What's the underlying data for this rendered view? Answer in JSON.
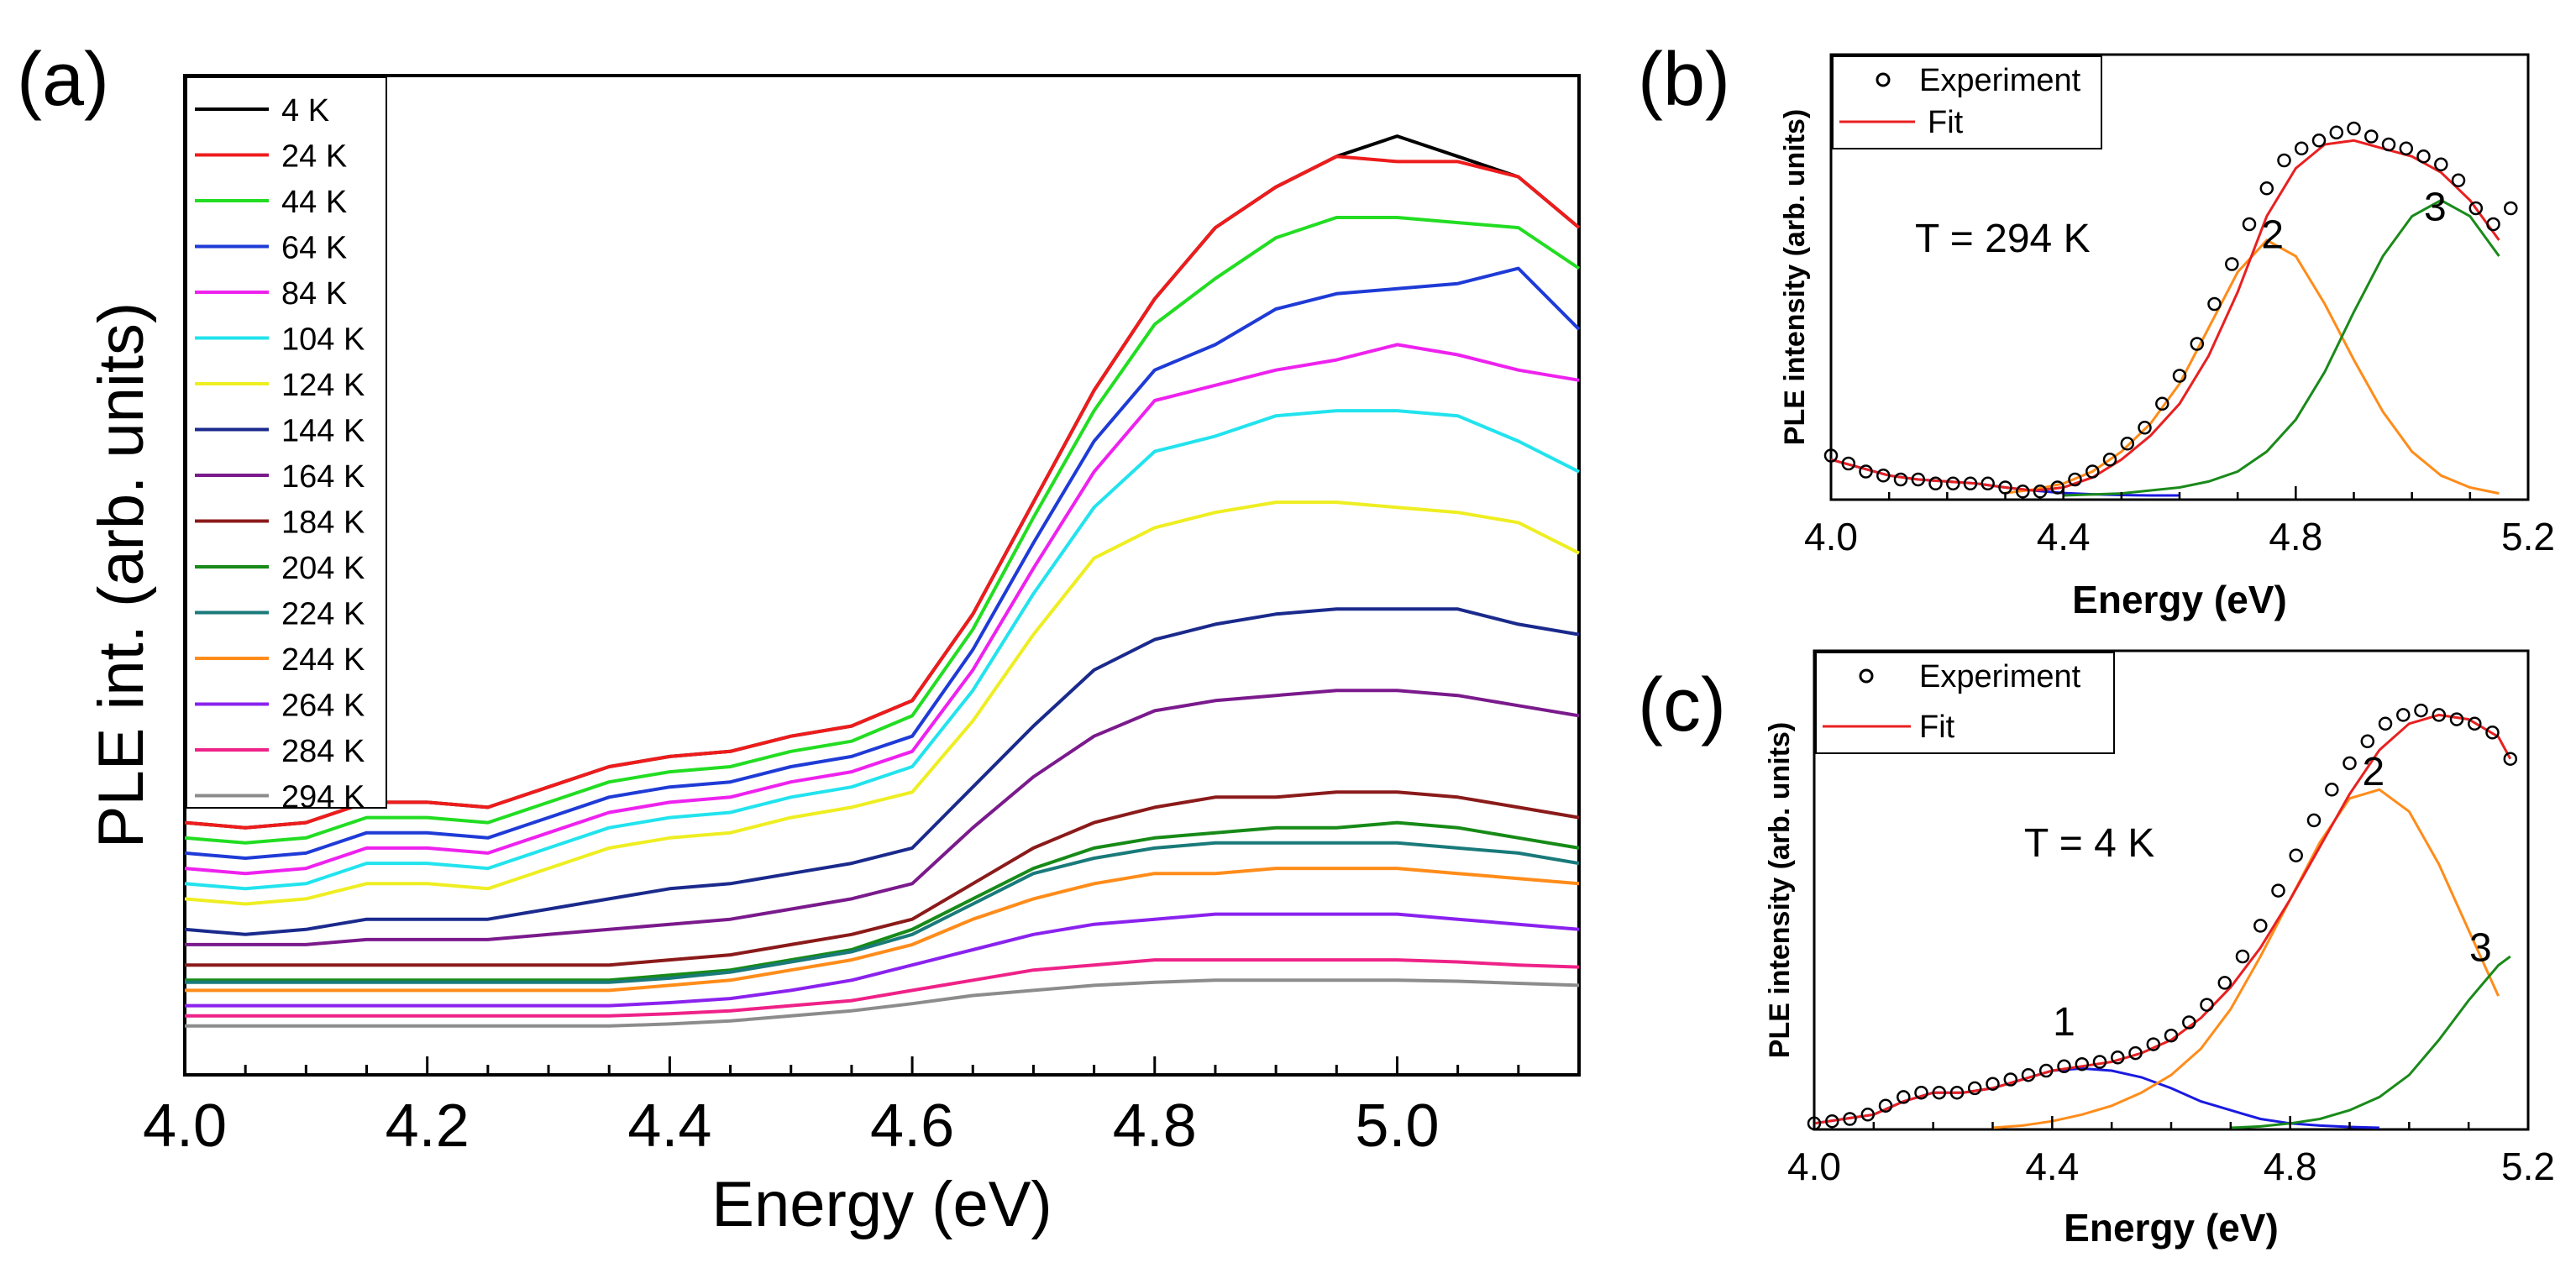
{
  "chart_data": [
    {
      "panel": "(a)",
      "type": "line",
      "xlabel": "Energy (eV)",
      "ylabel": "PLE int. (arb. units)",
      "xlim": [
        4.0,
        5.15
      ],
      "ylim": [
        0,
        100
      ],
      "xticks": [
        "4.0",
        "4.2",
        "4.4",
        "4.6",
        "4.8",
        "5.0"
      ],
      "legend_position": "top-left",
      "x": [
        4.0,
        4.05,
        4.1,
        4.15,
        4.2,
        4.25,
        4.3,
        4.35,
        4.4,
        4.45,
        4.5,
        4.55,
        4.6,
        4.65,
        4.7,
        4.75,
        4.8,
        4.85,
        4.9,
        4.95,
        5.0,
        5.05,
        5.1,
        5.15
      ],
      "series": [
        {
          "name": "4 K",
          "color": "#000000",
          "values": [
            21.5,
            21,
            21.5,
            23.5,
            23.5,
            23,
            25,
            27,
            28,
            28.5,
            30,
            31,
            33.5,
            42,
            53,
            64,
            73,
            80,
            84,
            87,
            89,
            87,
            85,
            80
          ]
        },
        {
          "name": "24 K",
          "color": "#ee1c1c",
          "values": [
            21.5,
            21,
            21.5,
            23.5,
            23.5,
            23,
            25,
            27,
            28,
            28.5,
            30,
            31,
            33.5,
            42,
            53,
            64,
            73,
            80,
            84,
            87,
            86.5,
            86.5,
            85,
            80
          ]
        },
        {
          "name": "44 K",
          "color": "#22dd22",
          "values": [
            20,
            19.5,
            20,
            22,
            22,
            21.5,
            23.5,
            25.5,
            26.5,
            27,
            28.5,
            29.5,
            32,
            40.5,
            51.5,
            62,
            70.5,
            75,
            79,
            81,
            81,
            80.5,
            80,
            76
          ]
        },
        {
          "name": "64 K",
          "color": "#1f3bd6",
          "values": [
            18.5,
            18,
            18.5,
            20.5,
            20.5,
            20,
            22,
            24,
            25,
            25.5,
            27,
            28,
            30,
            38.5,
            49,
            59,
            66,
            68.5,
            72,
            73.5,
            74,
            74.5,
            76,
            70
          ]
        },
        {
          "name": "84 K",
          "color": "#ee22ee",
          "values": [
            17,
            16.5,
            17,
            19,
            19,
            18.5,
            20.5,
            22.5,
            23.5,
            24,
            25.5,
            26.5,
            28.5,
            36.5,
            46.5,
            56,
            63,
            64.5,
            66,
            67,
            68.5,
            67.5,
            66,
            65
          ]
        },
        {
          "name": "104 K",
          "color": "#22e3ee",
          "values": [
            15.5,
            15,
            15.5,
            17.5,
            17.5,
            17,
            19,
            21,
            22,
            22.5,
            24,
            25,
            27,
            34.5,
            44,
            52.5,
            58,
            59.5,
            61.5,
            62,
            62,
            61.5,
            59,
            56
          ]
        },
        {
          "name": "124 K",
          "color": "#eeee22",
          "values": [
            14,
            13.5,
            14,
            15.5,
            15.5,
            15,
            17,
            19,
            20,
            20.5,
            22,
            23,
            24.5,
            31.5,
            40,
            47.5,
            50.5,
            52,
            53,
            53,
            52.5,
            52,
            51,
            48
          ]
        },
        {
          "name": "144 K",
          "color": "#1a2a8c",
          "values": [
            11,
            10.5,
            11,
            12,
            12,
            12,
            13,
            14,
            15,
            15.5,
            16.5,
            17.5,
            19,
            25,
            31,
            36.5,
            39.5,
            41,
            42,
            42.5,
            42.5,
            42.5,
            41,
            40
          ]
        },
        {
          "name": "164 K",
          "color": "#7a1a8c",
          "values": [
            9.5,
            9.5,
            9.5,
            10,
            10,
            10,
            10.5,
            11,
            11.5,
            12,
            13,
            14,
            15.5,
            21,
            26,
            30,
            32.5,
            33.5,
            34,
            34.5,
            34.5,
            34,
            33,
            32
          ]
        },
        {
          "name": "184 K",
          "color": "#8b1a1a",
          "values": [
            7.5,
            7.5,
            7.5,
            7.5,
            7.5,
            7.5,
            7.5,
            7.5,
            8,
            8.5,
            9.5,
            10.5,
            12,
            15.5,
            19,
            21.5,
            23,
            24,
            24,
            24.5,
            24.5,
            24,
            23,
            22
          ]
        },
        {
          "name": "204 K",
          "color": "#178a17",
          "values": [
            6,
            6,
            6,
            6,
            6,
            6,
            6,
            6,
            6.5,
            7,
            8,
            9,
            11,
            14,
            17,
            19,
            20,
            20.5,
            21,
            21,
            21.5,
            21,
            20,
            19
          ]
        },
        {
          "name": "224 K",
          "color": "#1a7a7a",
          "values": [
            5.8,
            5.8,
            5.8,
            5.8,
            5.8,
            5.8,
            5.8,
            5.8,
            6.2,
            6.8,
            7.8,
            8.8,
            10.5,
            13.5,
            16.5,
            18,
            19,
            19.5,
            19.5,
            19.5,
            19.5,
            19,
            18.5,
            17.5
          ]
        },
        {
          "name": "244 K",
          "color": "#ff8c1a",
          "values": [
            5,
            5,
            5,
            5,
            5,
            5,
            5,
            5,
            5.5,
            6,
            7,
            8,
            9.5,
            12,
            14,
            15.5,
            16.5,
            16.5,
            17,
            17,
            17,
            16.5,
            16,
            15.5
          ]
        },
        {
          "name": "264 K",
          "color": "#8a22ee",
          "values": [
            3.5,
            3.5,
            3.5,
            3.5,
            3.5,
            3.5,
            3.5,
            3.5,
            3.8,
            4.2,
            5,
            6,
            7.5,
            9,
            10.5,
            11.5,
            12,
            12.5,
            12.5,
            12.5,
            12.5,
            12,
            11.5,
            11
          ]
        },
        {
          "name": "284 K",
          "color": "#ee2288",
          "values": [
            2.5,
            2.5,
            2.5,
            2.5,
            2.5,
            2.5,
            2.5,
            2.5,
            2.7,
            3,
            3.5,
            4,
            5,
            6,
            7,
            7.5,
            8,
            8,
            8,
            8,
            8,
            7.8,
            7.5,
            7.3
          ]
        },
        {
          "name": "294 K",
          "color": "#8c8c8c",
          "values": [
            1.5,
            1.5,
            1.5,
            1.5,
            1.5,
            1.5,
            1.5,
            1.5,
            1.7,
            2,
            2.5,
            3,
            3.7,
            4.5,
            5,
            5.5,
            5.8,
            6,
            6,
            6,
            6,
            5.9,
            5.7,
            5.5
          ]
        }
      ]
    },
    {
      "panel": "(b)",
      "type": "line",
      "xlabel": "Energy (eV)",
      "ylabel": "PLE intensity (arb. units)",
      "xlim": [
        4.0,
        5.2
      ],
      "ylim": [
        0,
        100
      ],
      "xticks": [
        "4.0",
        "4.4",
        "4.8",
        "5.2"
      ],
      "annotation": "T = 294 K",
      "legend": [
        "Experiment",
        "Fit"
      ],
      "peak_labels": [
        {
          "text": "2",
          "x": 4.76,
          "y": 62
        },
        {
          "text": "3",
          "x": 5.04,
          "y": 69
        }
      ],
      "experiment_x": [
        4.0,
        4.03,
        4.06,
        4.09,
        4.12,
        4.15,
        4.18,
        4.21,
        4.24,
        4.27,
        4.3,
        4.33,
        4.36,
        4.39,
        4.42,
        4.45,
        4.48,
        4.51,
        4.54,
        4.57,
        4.6,
        4.63,
        4.66,
        4.69,
        4.72,
        4.75,
        4.78,
        4.81,
        4.84,
        4.87,
        4.9,
        4.93,
        4.96,
        4.99,
        5.02,
        5.05,
        5.08,
        5.11,
        5.14,
        5.17
      ],
      "experiment_y": [
        10,
        8,
        6,
        5,
        4,
        4,
        3,
        3,
        3,
        3,
        2,
        1,
        1,
        2,
        4,
        6,
        9,
        13,
        17,
        23,
        30,
        38,
        48,
        58,
        68,
        77,
        84,
        87,
        89,
        91,
        92,
        90,
        88,
        87,
        85,
        83,
        79,
        72,
        68,
        72
      ],
      "fit": {
        "color": "#e82020",
        "x": [
          4.0,
          4.05,
          4.1,
          4.15,
          4.2,
          4.25,
          4.3,
          4.35,
          4.4,
          4.45,
          4.5,
          4.55,
          4.6,
          4.65,
          4.7,
          4.75,
          4.8,
          4.85,
          4.9,
          4.95,
          5.0,
          5.05,
          5.1,
          5.15
        ],
        "y": [
          9,
          7,
          5,
          4,
          3.5,
          3,
          2,
          1.2,
          2,
          4.5,
          9,
          15,
          23,
          35,
          51,
          70,
          82,
          88,
          89,
          87,
          85,
          81,
          74,
          64
        ]
      },
      "components": [
        {
          "name": "1",
          "color": "#1a1ae0",
          "x": [
            4.0,
            4.05,
            4.1,
            4.15,
            4.2,
            4.25,
            4.3,
            4.35,
            4.4,
            4.45,
            4.5,
            4.55,
            4.6
          ],
          "y": [
            9,
            7,
            5,
            4,
            3.5,
            3,
            2,
            1.2,
            0.6,
            0.3,
            0.1,
            0,
            0
          ]
        },
        {
          "name": "2",
          "color": "#ff8c1a",
          "x": [
            4.3,
            4.35,
            4.4,
            4.45,
            4.5,
            4.55,
            4.6,
            4.65,
            4.7,
            4.75,
            4.8,
            4.85,
            4.9,
            4.95,
            5.0,
            5.05,
            5.1,
            5.15
          ],
          "y": [
            0.6,
            1.5,
            3,
            6,
            11,
            18,
            28,
            42,
            56,
            64,
            60,
            48,
            34,
            21,
            11,
            5,
            2,
            0.5
          ]
        },
        {
          "name": "3",
          "color": "#1a8a1a",
          "x": [
            4.4,
            4.5,
            4.6,
            4.65,
            4.7,
            4.75,
            4.8,
            4.85,
            4.9,
            4.95,
            5.0,
            5.05,
            5.1,
            5.15
          ],
          "y": [
            0,
            0.5,
            2,
            3.5,
            6,
            11,
            19,
            31,
            46,
            60,
            70,
            74,
            70,
            60
          ]
        }
      ]
    },
    {
      "panel": "(c)",
      "type": "line",
      "xlabel": "Energy (eV)",
      "ylabel": "PLE intensity (arb. units)",
      "xlim": [
        4.0,
        5.2
      ],
      "ylim": [
        0,
        100
      ],
      "xticks": [
        "4.0",
        "4.4",
        "4.8",
        "5.2"
      ],
      "annotation": "T = 4 K",
      "legend": [
        "Experiment",
        "Fit"
      ],
      "peak_labels": [
        {
          "text": "1",
          "x": 4.42,
          "y": 21
        },
        {
          "text": "2",
          "x": 4.94,
          "y": 78
        },
        {
          "text": "3",
          "x": 5.12,
          "y": 38
        }
      ],
      "experiment_x": [
        4.0,
        4.03,
        4.06,
        4.09,
        4.12,
        4.15,
        4.18,
        4.21,
        4.24,
        4.27,
        4.3,
        4.33,
        4.36,
        4.39,
        4.42,
        4.45,
        4.48,
        4.51,
        4.54,
        4.57,
        4.6,
        4.63,
        4.66,
        4.69,
        4.72,
        4.75,
        4.78,
        4.81,
        4.84,
        4.87,
        4.9,
        4.93,
        4.96,
        4.99,
        5.02,
        5.05,
        5.08,
        5.11,
        5.14,
        5.17
      ],
      "experiment_y": [
        1,
        1.5,
        2,
        3,
        5,
        7,
        8,
        8,
        8,
        9,
        10,
        11,
        12,
        13,
        14,
        14.5,
        15,
        16,
        17,
        19,
        21,
        24,
        28,
        33,
        39,
        46,
        54,
        62,
        70,
        77,
        83,
        88,
        92,
        94,
        95,
        94,
        93,
        92,
        90,
        84
      ],
      "fit": {
        "color": "#e82020",
        "x": [
          4.0,
          4.05,
          4.1,
          4.15,
          4.2,
          4.25,
          4.3,
          4.35,
          4.4,
          4.45,
          4.5,
          4.55,
          4.6,
          4.65,
          4.7,
          4.75,
          4.8,
          4.85,
          4.9,
          4.95,
          5.0,
          5.05,
          5.1,
          5.15,
          5.17
        ],
        "y": [
          1,
          2,
          3,
          6,
          8,
          8,
          9,
          11,
          13,
          14,
          15,
          17,
          20,
          25,
          32,
          41,
          52,
          64,
          76,
          86,
          92,
          94,
          93,
          89,
          84
        ]
      },
      "components": [
        {
          "name": "1",
          "color": "#1a1ae0",
          "x": [
            4.0,
            4.05,
            4.1,
            4.15,
            4.2,
            4.25,
            4.3,
            4.35,
            4.4,
            4.45,
            4.5,
            4.55,
            4.6,
            4.65,
            4.7,
            4.75,
            4.8,
            4.85,
            4.9,
            4.95
          ],
          "y": [
            1,
            2,
            3,
            6,
            8,
            8,
            9,
            11,
            13,
            13.5,
            13,
            11.5,
            9,
            6,
            4,
            2,
            1,
            0.5,
            0.2,
            0
          ]
        },
        {
          "name": "2",
          "color": "#ff8c1a",
          "x": [
            4.3,
            4.35,
            4.4,
            4.45,
            4.5,
            4.55,
            4.6,
            4.65,
            4.7,
            4.75,
            4.8,
            4.85,
            4.9,
            4.95,
            5.0,
            5.05,
            5.1,
            5.15
          ],
          "y": [
            0,
            0.5,
            1.5,
            3,
            5,
            8,
            12,
            18,
            27,
            39,
            52,
            65,
            75,
            77,
            72,
            60,
            45,
            30
          ]
        },
        {
          "name": "3",
          "color": "#1a8a1a",
          "x": [
            4.7,
            4.75,
            4.8,
            4.85,
            4.9,
            4.95,
            5.0,
            5.05,
            5.1,
            5.15,
            5.17
          ],
          "y": [
            0,
            0.3,
            1,
            2,
            4,
            7,
            12,
            20,
            29,
            37,
            39
          ]
        }
      ]
    }
  ]
}
